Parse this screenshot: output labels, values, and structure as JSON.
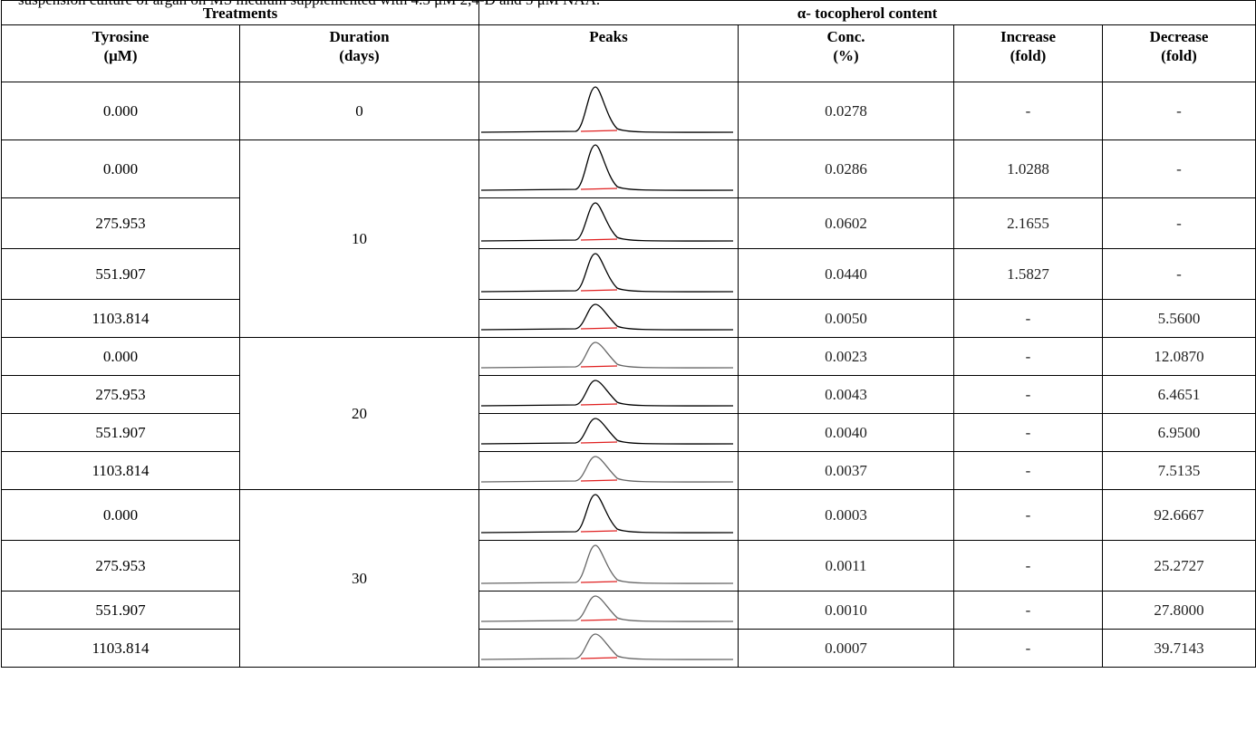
{
  "caption": "suspension culture of argan on MS medium supplemented with 4.5 μM 2,4-D and 5 μM NAA.",
  "headers": {
    "group_treatments": "Treatments",
    "group_content": "α- tocopherol content",
    "tyrosine_line1": "Tyrosine",
    "tyrosine_line2": "(μM)",
    "duration_line1": "Duration",
    "duration_line2": "(days)",
    "peaks": "Peaks",
    "conc_line1": "Conc.",
    "conc_line2": "(%)",
    "increase_line1": "Increase",
    "increase_line2": "(fold)",
    "decrease_line1": "Decrease",
    "decrease_line2": "(fold)"
  },
  "durations": [
    "0",
    "10",
    "20",
    "30"
  ],
  "rows": [
    {
      "tyrosine": "0.000",
      "conc": "0.0278",
      "increase": "-",
      "decrease": "-"
    },
    {
      "tyrosine": "0.000",
      "conc": "0.0286",
      "increase": "1.0288",
      "decrease": "-"
    },
    {
      "tyrosine": "275.953",
      "conc": "0.0602",
      "increase": "2.1655",
      "decrease": "-"
    },
    {
      "tyrosine": "551.907",
      "conc": "0.0440",
      "increase": "1.5827",
      "decrease": "-"
    },
    {
      "tyrosine": "1103.814",
      "conc": "0.0050",
      "increase": "-",
      "decrease": "5.5600"
    },
    {
      "tyrosine": "0.000",
      "conc": "0.0023",
      "increase": "-",
      "decrease": "12.0870"
    },
    {
      "tyrosine": "275.953",
      "conc": "0.0043",
      "increase": "-",
      "decrease": "6.4651"
    },
    {
      "tyrosine": "551.907",
      "conc": "0.0040",
      "increase": "-",
      "decrease": "6.9500"
    },
    {
      "tyrosine": "1103.814",
      "conc": "0.0037",
      "increase": "-",
      "decrease": "7.5135"
    },
    {
      "tyrosine": "0.000",
      "conc": "0.0003",
      "increase": "-",
      "decrease": "92.6667"
    },
    {
      "tyrosine": "275.953",
      "conc": "0.0011",
      "increase": "-",
      "decrease": "25.2727"
    },
    {
      "tyrosine": "551.907",
      "conc": "0.0010",
      "increase": "-",
      "decrease": "27.8000"
    },
    {
      "tyrosine": "1103.814",
      "conc": "0.0007",
      "increase": "-",
      "decrease": "39.7143"
    }
  ],
  "colors": {
    "peak_line": "#000000",
    "baseline": "#e02020"
  }
}
